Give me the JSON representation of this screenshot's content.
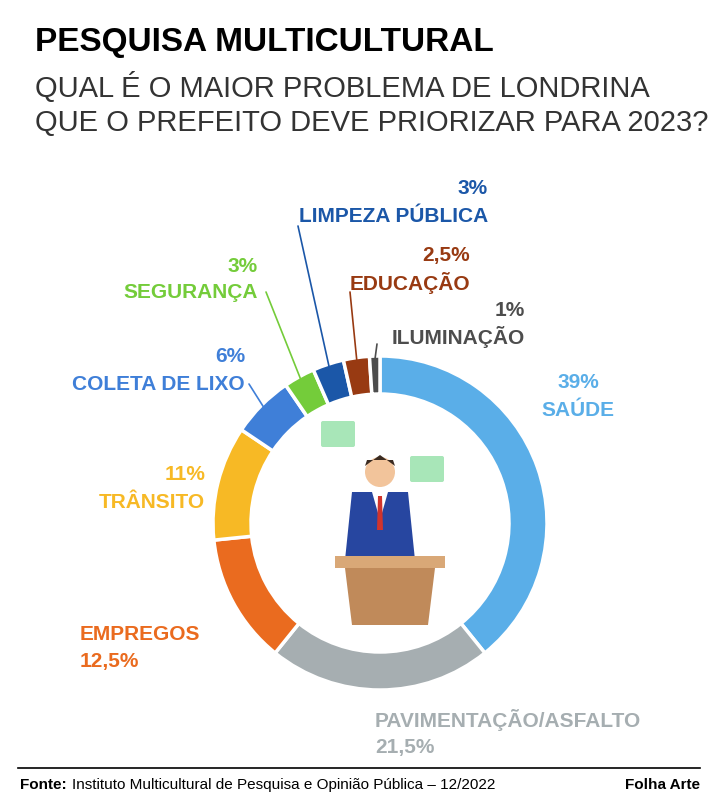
{
  "chart_data": {
    "type": "pie",
    "title": "PESQUISA MULTICULTURAL",
    "subtitle": "QUAL É O MAIOR PROBLEMA DE LONDRINA QUE O PREFEITO DEVE PRIORIZAR PARA 2023?",
    "categories": [
      "SAÚDE",
      "PAVIMENTAÇÃO/ASFALTO",
      "EMPREGOS",
      "TRÂNSITO",
      "COLETA DE LIXO",
      "SEGURANÇA",
      "LIMPEZA PÚBLICA",
      "EDUCAÇÃO",
      "ILUMINAÇÃO"
    ],
    "values": [
      39,
      21.5,
      12.5,
      11,
      6,
      3,
      3,
      2.5,
      1
    ],
    "value_labels": [
      "39%",
      "21,5%",
      "12,5%",
      "11%",
      "6%",
      "3%",
      "3%",
      "2,5%",
      "1%"
    ],
    "colors": [
      "#5aaee8",
      "#a6aeb1",
      "#ea6b1f",
      "#f7b925",
      "#3f7fd8",
      "#74cc3a",
      "#1b57a8",
      "#983a12",
      "#4d4d4d"
    ],
    "data_labels": true,
    "source_label": "Fonte:",
    "source": "Instituto Multicultural de Pesquisa e Opinião Pública – 12/2022",
    "credit": "Folha Arte"
  }
}
